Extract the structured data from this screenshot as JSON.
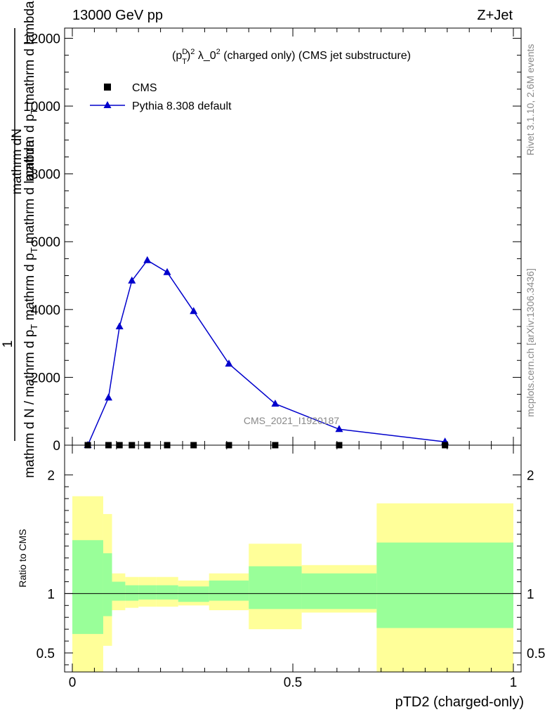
{
  "header": {
    "left": "13000 GeV pp",
    "right": "Z+Jet"
  },
  "side": {
    "rivet": "Rivet 3.1.10,  2.6M events",
    "mcplots": "mcplots.cern.ch [arXiv:1306.3436]"
  },
  "watermark": "CMS_2021_I1920187",
  "colors": {
    "mc": "#0000cc",
    "band_inner": "#99ff99",
    "band_outer": "#ffff99",
    "data": "#000000"
  },
  "chart_data": [
    {
      "type": "line",
      "title_parts": {
        "p": "(p",
        "sup": "D",
        "sub": "T",
        "rest1": ")",
        "sup2": "2",
        "rest2": " λ_0",
        "sup3": "2",
        "rest3": " (charged only) (CMS jet substructure)"
      },
      "ylabel": {
        "num": "mathrm dN",
        "num2": "mathrm d p",
        "num2_sub": "T",
        "num2_rest": " mathrm d lambda",
        "one": "1",
        "den": "mathrm d N / mathrm d p",
        "den_sub": "T",
        "den_rest": " mathrm d p",
        "den_sub2": "T",
        "den_rest2": " mathrm d lambda"
      },
      "xlim": [
        0,
        1
      ],
      "ylim": [
        0,
        12300
      ],
      "yticks": [
        0,
        2000,
        4000,
        6000,
        8000,
        10000,
        12000
      ],
      "ytick_labels": [
        "0",
        "2000",
        "4000",
        "6000",
        "8000",
        "10000",
        "12000"
      ],
      "legend": {
        "placement": "top-left",
        "data_label": "CMS",
        "mc_label": "Pythia 8.308 default"
      },
      "series": [
        {
          "name": "CMS",
          "marker": "square",
          "x": [
            0.035,
            0.082,
            0.107,
            0.135,
            0.17,
            0.215,
            0.275,
            0.355,
            0.46,
            0.605,
            0.845
          ],
          "y": [
            0,
            0,
            0,
            0,
            0,
            0,
            0,
            0,
            0,
            0,
            0
          ]
        },
        {
          "name": "Pythia 8.308 default",
          "marker": "triangle",
          "x": [
            0.035,
            0.082,
            0.107,
            0.135,
            0.17,
            0.215,
            0.275,
            0.355,
            0.46,
            0.605,
            0.845
          ],
          "y": [
            0,
            1400,
            3500,
            4850,
            5450,
            5100,
            3950,
            2400,
            1220,
            470,
            100
          ]
        }
      ]
    },
    {
      "type": "area",
      "ylabel": "Ratio to CMS",
      "xlabel": "pTD2 (charged-only)",
      "xlim": [
        0,
        1
      ],
      "ylim": [
        0.34,
        2.25
      ],
      "xticks": [
        0,
        0.5,
        1
      ],
      "xtick_labels": [
        "0",
        "0.5",
        "1"
      ],
      "yticks": [
        0.5,
        1,
        2
      ],
      "ytick_labels": [
        "0.5",
        "1",
        "2"
      ],
      "reference": 1,
      "bin_edges": [
        0,
        0.07,
        0.09,
        0.12,
        0.15,
        0.19,
        0.24,
        0.31,
        0.4,
        0.52,
        0.69,
        1.0
      ],
      "inner_band": {
        "lo": [
          0.66,
          0.81,
          0.94,
          0.94,
          0.95,
          0.95,
          0.93,
          0.94,
          0.87,
          0.87,
          0.71
        ],
        "hi": [
          1.45,
          1.34,
          1.1,
          1.07,
          1.07,
          1.07,
          1.06,
          1.11,
          1.23,
          1.17,
          1.43
        ]
      },
      "outer_band": {
        "lo": [
          0.34,
          0.56,
          0.86,
          0.88,
          0.89,
          0.89,
          0.9,
          0.86,
          0.7,
          0.84,
          0.34
        ],
        "hi": [
          1.82,
          1.67,
          1.17,
          1.14,
          1.14,
          1.14,
          1.11,
          1.17,
          1.42,
          1.24,
          1.76
        ]
      }
    }
  ]
}
